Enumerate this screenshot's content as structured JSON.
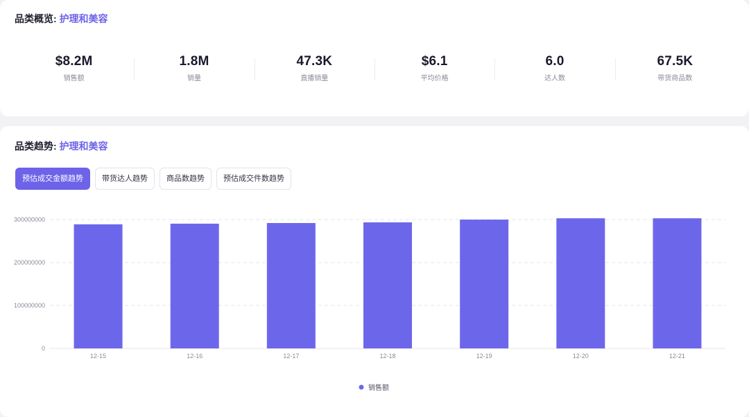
{
  "overview": {
    "title_prefix": "品类概览:",
    "title_category": "护理和美容",
    "stats": [
      {
        "value": "$8.2M",
        "label": "销售额"
      },
      {
        "value": "1.8M",
        "label": "销量"
      },
      {
        "value": "47.3K",
        "label": "直播销量"
      },
      {
        "value": "$6.1",
        "label": "平均价格"
      },
      {
        "value": "6.0",
        "label": "达人数"
      },
      {
        "value": "67.5K",
        "label": "带货商品数"
      }
    ]
  },
  "trend": {
    "title_prefix": "品类趋势:",
    "title_category": "护理和美容",
    "tabs": [
      {
        "label": "预估成交金额趋势",
        "active": true
      },
      {
        "label": "带货达人趋势",
        "active": false
      },
      {
        "label": "商品数趋势",
        "active": false
      },
      {
        "label": "预估成交件数趋势",
        "active": false
      }
    ]
  },
  "colors": {
    "accent": "#6d63e8",
    "bar": "#6c67ea"
  },
  "chart_data": {
    "type": "bar",
    "categories": [
      "12-15",
      "12-16",
      "12-17",
      "12-18",
      "12-19",
      "12-20",
      "12-21"
    ],
    "series": [
      {
        "name": "销售额",
        "values": [
          289000000,
          290500000,
          292000000,
          293500000,
          300000000,
          303000000,
          303000000
        ]
      }
    ],
    "yticks": [
      "0",
      "100000000",
      "200000000",
      "300000000"
    ],
    "ylim": [
      0,
      300000000
    ],
    "grid": true,
    "legend": "bottom-center"
  }
}
